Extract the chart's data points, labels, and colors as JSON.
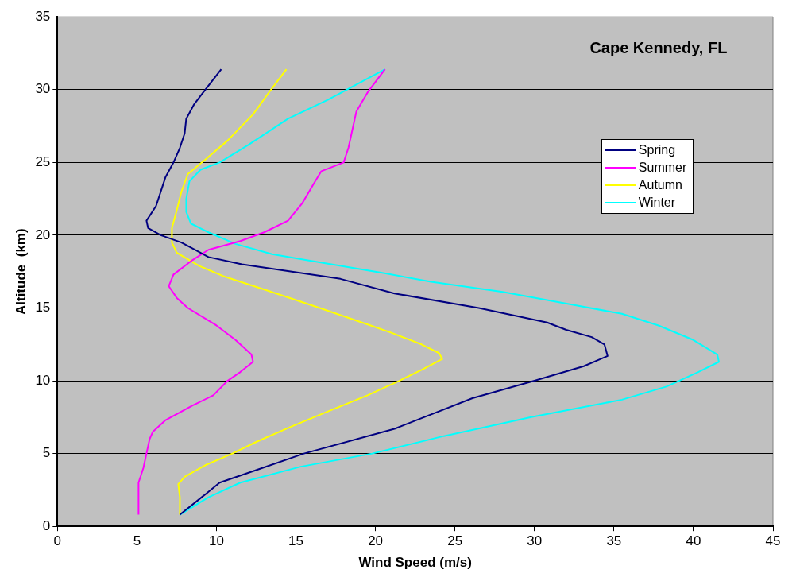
{
  "chart_data": {
    "type": "line",
    "title": "Cape Kennedy, FL",
    "xlabel": "Wind Speed (m/s)",
    "ylabel": "Altitude  (km)",
    "xlim": [
      0,
      45
    ],
    "xticks": [
      0,
      5,
      10,
      15,
      20,
      25,
      30,
      35,
      40,
      45
    ],
    "ylim": [
      0,
      35
    ],
    "yticks": [
      0,
      5,
      10,
      15,
      20,
      25,
      30,
      35
    ],
    "grid": "y",
    "legend": "top right",
    "marker": "none",
    "line_style": "solid",
    "series": [
      {
        "name": "Spring",
        "color": "#000080",
        "x": [
          7.7,
          9.3,
          10.2,
          12.6,
          15.5,
          21.2,
          26.1,
          30,
          33.1,
          34.6,
          34.4,
          33.6,
          32,
          30.8,
          26.5,
          21.2,
          17.8,
          11.6,
          9.5,
          7.8,
          6.5,
          5.7,
          5.6,
          6.2,
          6.8,
          7.3,
          7.7,
          8.0,
          8.1,
          8.6,
          9.3,
          10.3
        ],
        "values": [
          0.8,
          2.2,
          3,
          3.9,
          5,
          6.7,
          8.8,
          10,
          11,
          11.7,
          12.5,
          13,
          13.5,
          14,
          15,
          16,
          17,
          18,
          18.5,
          19.5,
          20,
          20.5,
          21,
          22,
          24,
          25,
          26,
          27,
          28,
          29,
          30,
          31.4
        ]
      },
      {
        "name": "Summer",
        "color": "#ff00ff",
        "x": [
          5.1,
          5.1,
          5.4,
          5.6,
          5.8,
          6.0,
          6.8,
          8.5,
          9.8,
          10.7,
          11.5,
          12.3,
          12.2,
          11.2,
          10,
          8.2,
          7.5,
          7.0,
          7.3,
          8.5,
          9.5,
          11.5,
          13,
          14.5,
          15.4,
          16.1,
          16.6,
          18,
          18.3,
          18.5,
          18.8,
          19.5,
          20.6
        ],
        "values": [
          0.8,
          3,
          4,
          5,
          6,
          6.5,
          7.3,
          8.3,
          9,
          10,
          10.6,
          11.3,
          11.8,
          12.8,
          13.8,
          15,
          15.7,
          16.5,
          17.3,
          18.3,
          19,
          19.6,
          20.2,
          21,
          22.2,
          23.5,
          24.4,
          25,
          26,
          27,
          28.5,
          29.8,
          31.4
        ]
      },
      {
        "name": "Autumn",
        "color": "#ffff00",
        "x": [
          7.7,
          7.7,
          7.6,
          8,
          9.3,
          11,
          12.5,
          14.6,
          16.8,
          19.5,
          21.5,
          23,
          24.2,
          24,
          22.9,
          21,
          19.7,
          16.5,
          13.2,
          10.4,
          8.9,
          7.5,
          7.2,
          7.2,
          7.5,
          7.8,
          8.2,
          9.3,
          10.7,
          12.3,
          13.3,
          14.4
        ],
        "values": [
          0.8,
          2,
          2.9,
          3.4,
          4.2,
          5,
          5.8,
          6.8,
          7.8,
          9,
          10,
          10.8,
          11.5,
          11.9,
          12.5,
          13.3,
          13.8,
          15,
          16.2,
          17.2,
          17.9,
          18.8,
          19.5,
          20.5,
          21.7,
          23,
          24.2,
          25.2,
          26.5,
          28.3,
          29.8,
          31.4
        ]
      },
      {
        "name": "Winter",
        "color": "#00ffff",
        "x": [
          7.7,
          9.5,
          11.5,
          15.3,
          19.8,
          24.3,
          29.8,
          35.5,
          38.3,
          40.3,
          41.6,
          41.5,
          40,
          37.8,
          35.5,
          32.5,
          28,
          23.5,
          20.5,
          15.6,
          13.5,
          11.2,
          9.5,
          8.4,
          8.1,
          8.1,
          8.3,
          9,
          10.2,
          12,
          14.5,
          17,
          20.6
        ],
        "values": [
          0.8,
          2,
          3,
          4.1,
          5,
          6.2,
          7.5,
          8.7,
          9.6,
          10.6,
          11.3,
          11.8,
          12.8,
          13.8,
          14.6,
          15.2,
          16.1,
          16.8,
          17.4,
          18.3,
          18.7,
          19.4,
          20.2,
          20.8,
          21.6,
          22.5,
          23.7,
          24.5,
          25,
          26.2,
          28,
          29.3,
          31.4
        ]
      }
    ]
  }
}
